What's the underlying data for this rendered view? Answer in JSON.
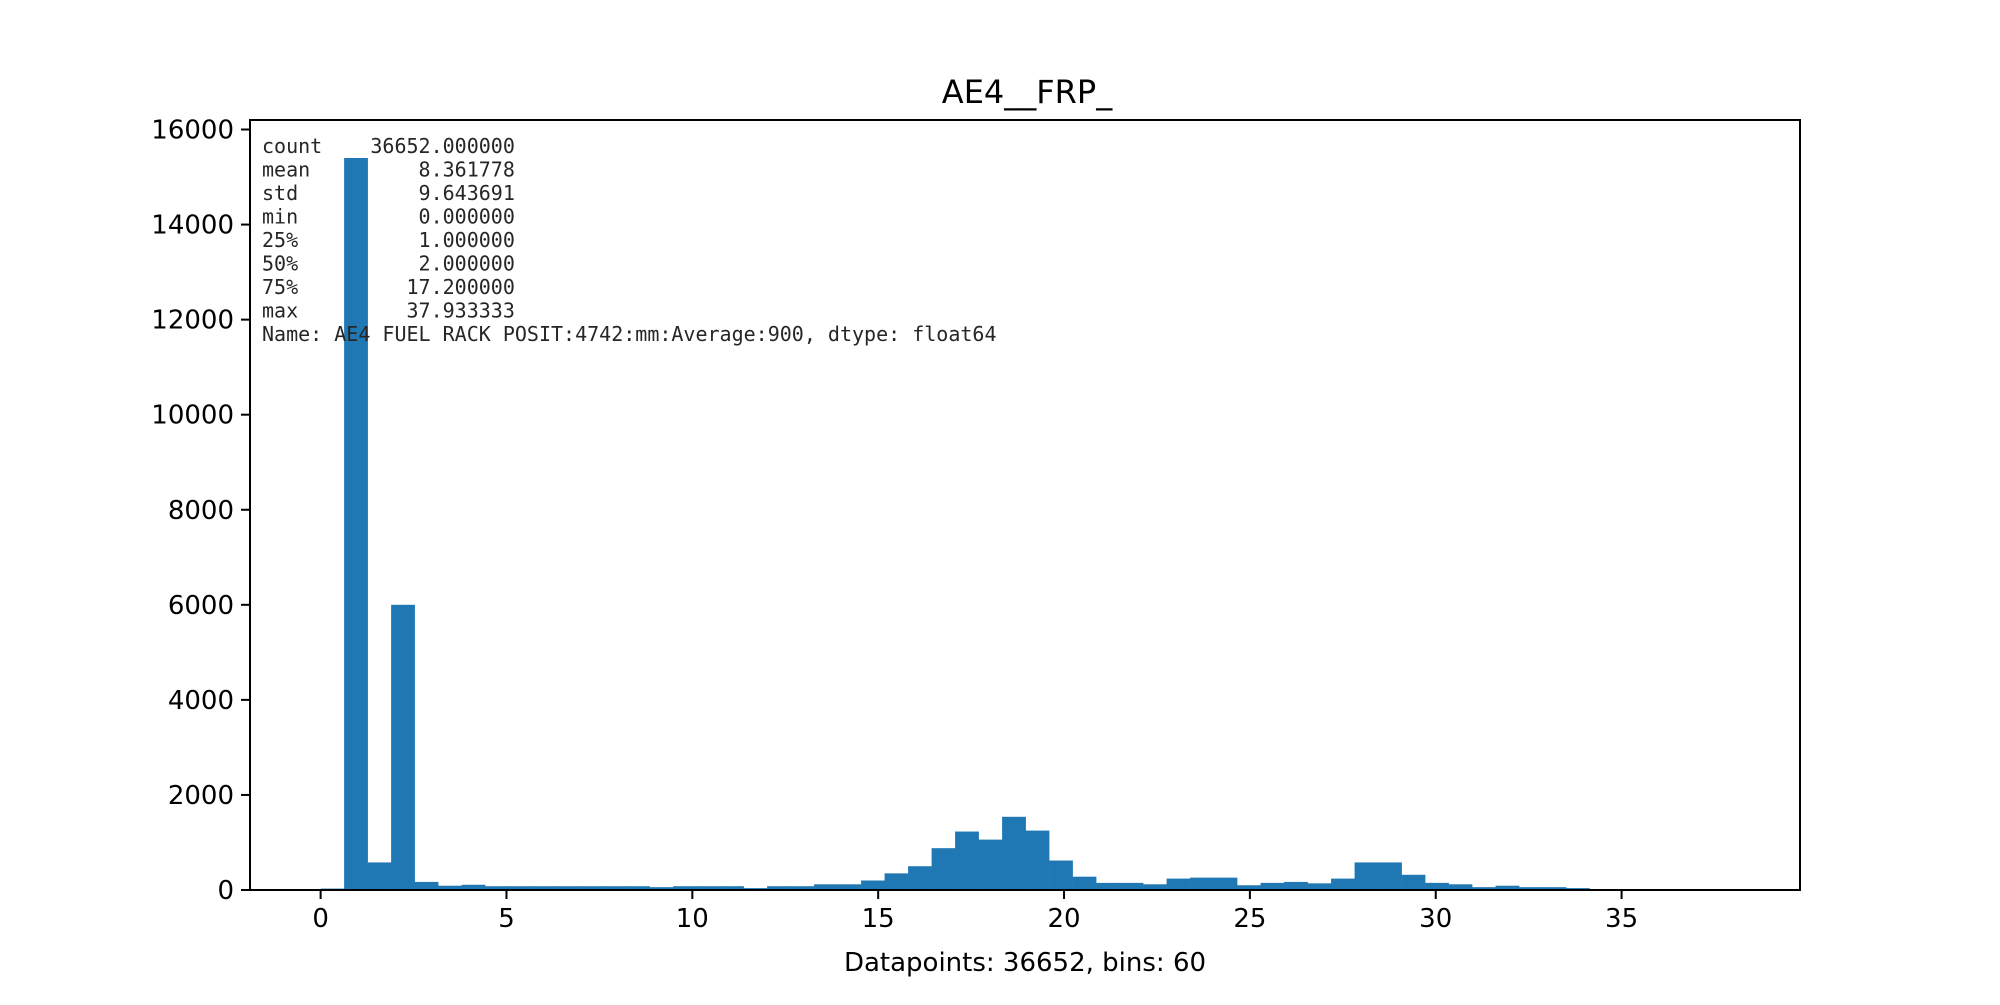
{
  "chart_data": {
    "type": "bar",
    "title": "AE4__FRP_",
    "xlabel": "Datapoints: 36652, bins: 60",
    "ylabel": "",
    "xlim": [
      -1.9,
      39.8
    ],
    "ylim": [
      0,
      16200
    ],
    "x_ticks": [
      0,
      5,
      10,
      15,
      20,
      25,
      30,
      35
    ],
    "y_ticks": [
      0,
      2000,
      4000,
      6000,
      8000,
      10000,
      12000,
      14000,
      16000
    ],
    "bin_start": 0.0,
    "bin_width": 0.6322,
    "grid": false,
    "bar_color": "#1f77b4",
    "values": [
      30,
      15400,
      580,
      6000,
      170,
      90,
      110,
      80,
      80,
      80,
      80,
      80,
      80,
      80,
      60,
      80,
      80,
      80,
      40,
      80,
      80,
      120,
      120,
      200,
      350,
      500,
      880,
      1230,
      1060,
      1540,
      1250,
      620,
      280,
      150,
      150,
      120,
      240,
      260,
      260,
      100,
      150,
      170,
      140,
      240,
      580,
      580,
      320,
      150,
      120,
      60,
      90,
      60,
      60,
      40,
      10,
      20,
      20,
      10,
      5,
      5
    ],
    "stats_text": [
      "count    36652.000000",
      "mean         8.361778",
      "std          9.643691",
      "min          0.000000",
      "25%          1.000000",
      "50%          2.000000",
      "75%         17.200000",
      "max         37.933333",
      "Name: AE4 FUEL RACK POSIT:4742:mm:Average:900, dtype: float64"
    ]
  }
}
